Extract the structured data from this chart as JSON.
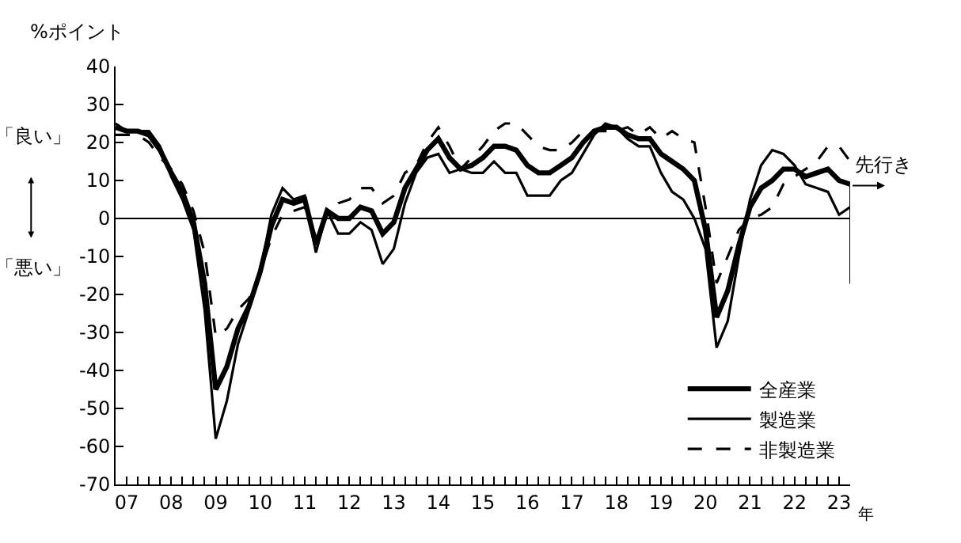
{
  "chart_data": {
    "type": "line",
    "ylabel": "%ポイント",
    "xlabel": "年",
    "x": [
      2006.75,
      2007,
      2007.25,
      2007.5,
      2007.75,
      2008,
      2008.25,
      2008.5,
      2008.75,
      2009,
      2009.25,
      2009.5,
      2009.75,
      2010,
      2010.25,
      2010.5,
      2010.75,
      2011,
      2011.25,
      2011.5,
      2011.75,
      2012,
      2012.25,
      2012.5,
      2012.75,
      2013,
      2013.25,
      2013.5,
      2013.75,
      2014,
      2014.25,
      2014.5,
      2014.75,
      2015,
      2015.25,
      2015.5,
      2015.75,
      2016,
      2016.25,
      2016.5,
      2016.75,
      2017,
      2017.25,
      2017.5,
      2017.75,
      2018,
      2018.25,
      2018.5,
      2018.75,
      2019,
      2019.25,
      2019.5,
      2019.75,
      2020,
      2020.25,
      2020.5,
      2020.75,
      2021,
      2021.25,
      2021.5,
      2021.75,
      2022,
      2022.25,
      2022.5,
      2022.75,
      2023,
      2023.25
    ],
    "series": [
      {
        "name": "全産業",
        "color": "#000000",
        "line_style": "solid",
        "values": [
          24,
          23,
          23,
          22,
          18,
          12,
          7,
          -1,
          -17,
          -45,
          -39,
          -29,
          -23,
          -14,
          -2,
          5,
          4,
          5,
          -7,
          2,
          0,
          0,
          3,
          2,
          -4,
          -1,
          8,
          13,
          18,
          21,
          16,
          13,
          14,
          16,
          19,
          19,
          18,
          14,
          12,
          12,
          14,
          16,
          20,
          23,
          24,
          24,
          22,
          21,
          21,
          17,
          15,
          13,
          10,
          -3,
          -26,
          -19,
          -7,
          3,
          8,
          10,
          13,
          13,
          11,
          12,
          13,
          10,
          9
        ]
      },
      {
        "name": "製造業",
        "color": "#000000",
        "line_style": "solid",
        "values": [
          25,
          23,
          23,
          23,
          19,
          11,
          5,
          -3,
          -24,
          -58,
          -48,
          -33,
          -24,
          -14,
          1,
          8,
          5,
          6,
          -9,
          2,
          -4,
          -4,
          -1,
          -3,
          -12,
          -8,
          4,
          12,
          16,
          17,
          12,
          13,
          12,
          12,
          15,
          12,
          12,
          6,
          6,
          6,
          10,
          12,
          17,
          22,
          25,
          24,
          21,
          19,
          19,
          12,
          7,
          5,
          0,
          -8,
          -34,
          -27,
          -10,
          5,
          14,
          18,
          17,
          14,
          9,
          8,
          7,
          1,
          3
        ]
      },
      {
        "name": "非製造業",
        "color": "#000000",
        "line_style": "dashed",
        "values": [
          22,
          22,
          22,
          20,
          16,
          13,
          9,
          2,
          -9,
          -31,
          -29,
          -24,
          -21,
          -14,
          -5,
          1,
          2,
          3,
          -5,
          1,
          4,
          5,
          8,
          8,
          4,
          6,
          12,
          14,
          20,
          24,
          19,
          13,
          16,
          19,
          23,
          25,
          25,
          22,
          19,
          18,
          18,
          20,
          23,
          23,
          23,
          23,
          24,
          22,
          24,
          21,
          23,
          21,
          20,
          3,
          -17,
          -10,
          -3,
          0,
          1,
          3,
          9,
          11,
          13,
          15,
          19,
          19,
          15
        ]
      }
    ],
    "xlim": [
      2006.75,
      2023.25
    ],
    "xticks": [
      {
        "value": 2006.75,
        "label": null
      },
      {
        "value": 2007,
        "label": "07"
      },
      {
        "value": 2007.25,
        "label": null
      },
      {
        "value": 2007.5,
        "label": null
      },
      {
        "value": 2007.75,
        "label": null
      },
      {
        "value": 2008,
        "label": "08"
      },
      {
        "value": 2008.25,
        "label": null
      },
      {
        "value": 2008.5,
        "label": null
      },
      {
        "value": 2008.75,
        "label": null
      },
      {
        "value": 2009,
        "label": "09"
      },
      {
        "value": 2009.25,
        "label": null
      },
      {
        "value": 2009.5,
        "label": null
      },
      {
        "value": 2009.75,
        "label": null
      },
      {
        "value": 2010,
        "label": "10"
      },
      {
        "value": 2010.25,
        "label": null
      },
      {
        "value": 2010.5,
        "label": null
      },
      {
        "value": 2010.75,
        "label": null
      },
      {
        "value": 2011,
        "label": "11"
      },
      {
        "value": 2011.25,
        "label": null
      },
      {
        "value": 2011.5,
        "label": null
      },
      {
        "value": 2011.75,
        "label": null
      },
      {
        "value": 2012,
        "label": "12"
      },
      {
        "value": 2012.25,
        "label": null
      },
      {
        "value": 2012.5,
        "label": null
      },
      {
        "value": 2012.75,
        "label": null
      },
      {
        "value": 2013,
        "label": "13"
      },
      {
        "value": 2013.25,
        "label": null
      },
      {
        "value": 2013.5,
        "label": null
      },
      {
        "value": 2013.75,
        "label": null
      },
      {
        "value": 2014,
        "label": "14"
      },
      {
        "value": 2014.25,
        "label": null
      },
      {
        "value": 2014.5,
        "label": null
      },
      {
        "value": 2014.75,
        "label": null
      },
      {
        "value": 2015,
        "label": "15"
      },
      {
        "value": 2015.25,
        "label": null
      },
      {
        "value": 2015.5,
        "label": null
      },
      {
        "value": 2015.75,
        "label": null
      },
      {
        "value": 2016,
        "label": "16"
      },
      {
        "value": 2016.25,
        "label": null
      },
      {
        "value": 2016.5,
        "label": null
      },
      {
        "value": 2016.75,
        "label": null
      },
      {
        "value": 2017,
        "label": "17"
      },
      {
        "value": 2017.25,
        "label": null
      },
      {
        "value": 2017.5,
        "label": null
      },
      {
        "value": 2017.75,
        "label": null
      },
      {
        "value": 2018,
        "label": "18"
      },
      {
        "value": 2018.25,
        "label": null
      },
      {
        "value": 2018.5,
        "label": null
      },
      {
        "value": 2018.75,
        "label": null
      },
      {
        "value": 2019,
        "label": "19"
      },
      {
        "value": 2019.25,
        "label": null
      },
      {
        "value": 2019.5,
        "label": null
      },
      {
        "value": 2019.75,
        "label": null
      },
      {
        "value": 2020,
        "label": "20"
      },
      {
        "value": 2020.25,
        "label": null
      },
      {
        "value": 2020.5,
        "label": null
      },
      {
        "value": 2020.75,
        "label": null
      },
      {
        "value": 2021,
        "label": "21"
      },
      {
        "value": 2021.25,
        "label": null
      },
      {
        "value": 2021.5,
        "label": null
      },
      {
        "value": 2021.75,
        "label": null
      },
      {
        "value": 2022,
        "label": "22"
      },
      {
        "value": 2022.25,
        "label": null
      },
      {
        "value": 2022.5,
        "label": null
      },
      {
        "value": 2022.75,
        "label": null
      },
      {
        "value": 2023,
        "label": "23"
      }
    ],
    "ylim": [
      -70,
      40
    ],
    "yticks": [
      -70,
      -60,
      -50,
      -40,
      -30,
      -20,
      -10,
      0,
      10,
      20,
      30,
      40
    ],
    "ref_lines": [
      {
        "axis": "y",
        "value": 0,
        "color": "#000000"
      },
      {
        "axis": "x",
        "value": 2023.25,
        "label": "先行き",
        "color": "#000000"
      }
    ],
    "annotations": [
      "「良い」",
      "「悪い」"
    ],
    "legend": "bottom right",
    "marker": "none"
  }
}
